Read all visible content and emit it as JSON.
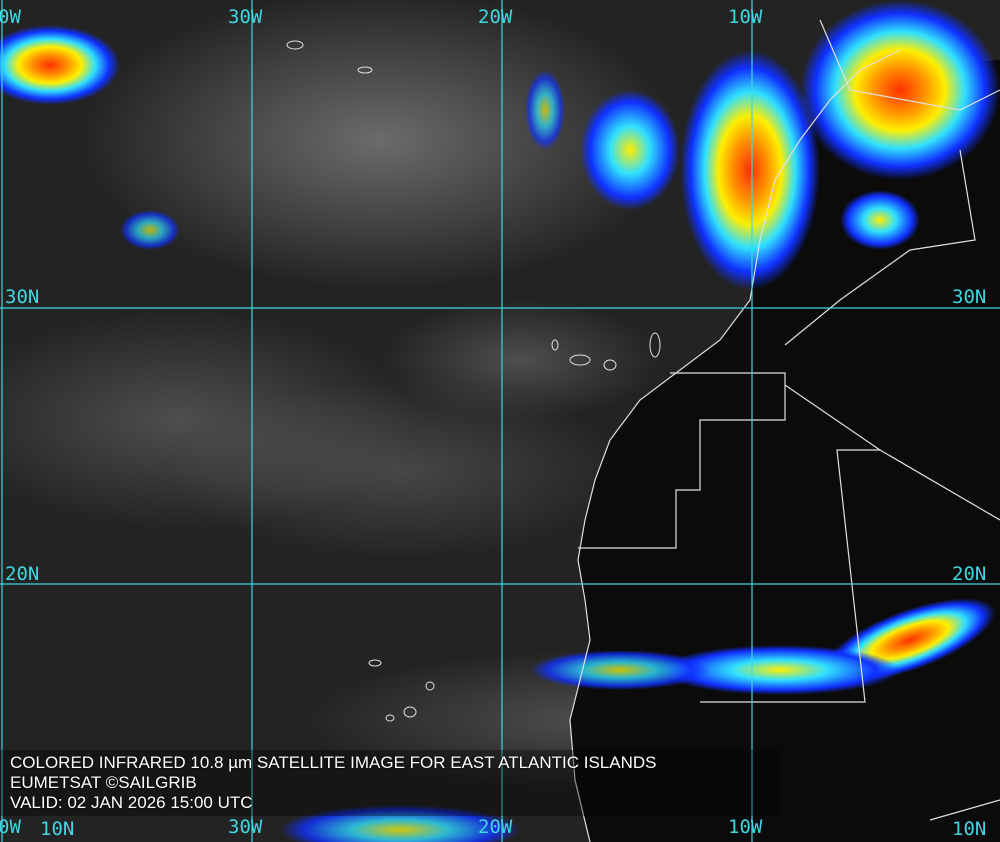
{
  "caption": {
    "title": "COLORED INFRARED 10.8 µm SATELLITE IMAGE FOR EAST ATLANTIC ISLANDS",
    "credit": "EUMETSAT ©SAILGRIB",
    "valid": "VALID:  02 JAN 2026 15:00 UTC"
  },
  "grid": {
    "longitudes_top": [
      "0W",
      "30W",
      "20W",
      "10W"
    ],
    "longitudes_bottom": [
      "0W",
      "30W",
      "20W",
      "10W"
    ],
    "latitudes_left": [
      "30N",
      "20N",
      "10N"
    ],
    "latitudes_right": [
      "30N",
      "20N",
      "10N"
    ],
    "color": "#3fd6e0"
  },
  "colors": {
    "ocean_cloud_gray": "#3a3a3a",
    "cold_cloud_blue": "#1030ff",
    "cyan": "#20e0ff",
    "yellow": "#ffee00",
    "orange": "#ff8800",
    "red": "#ff2000",
    "coastline": "#e0e0e0"
  }
}
